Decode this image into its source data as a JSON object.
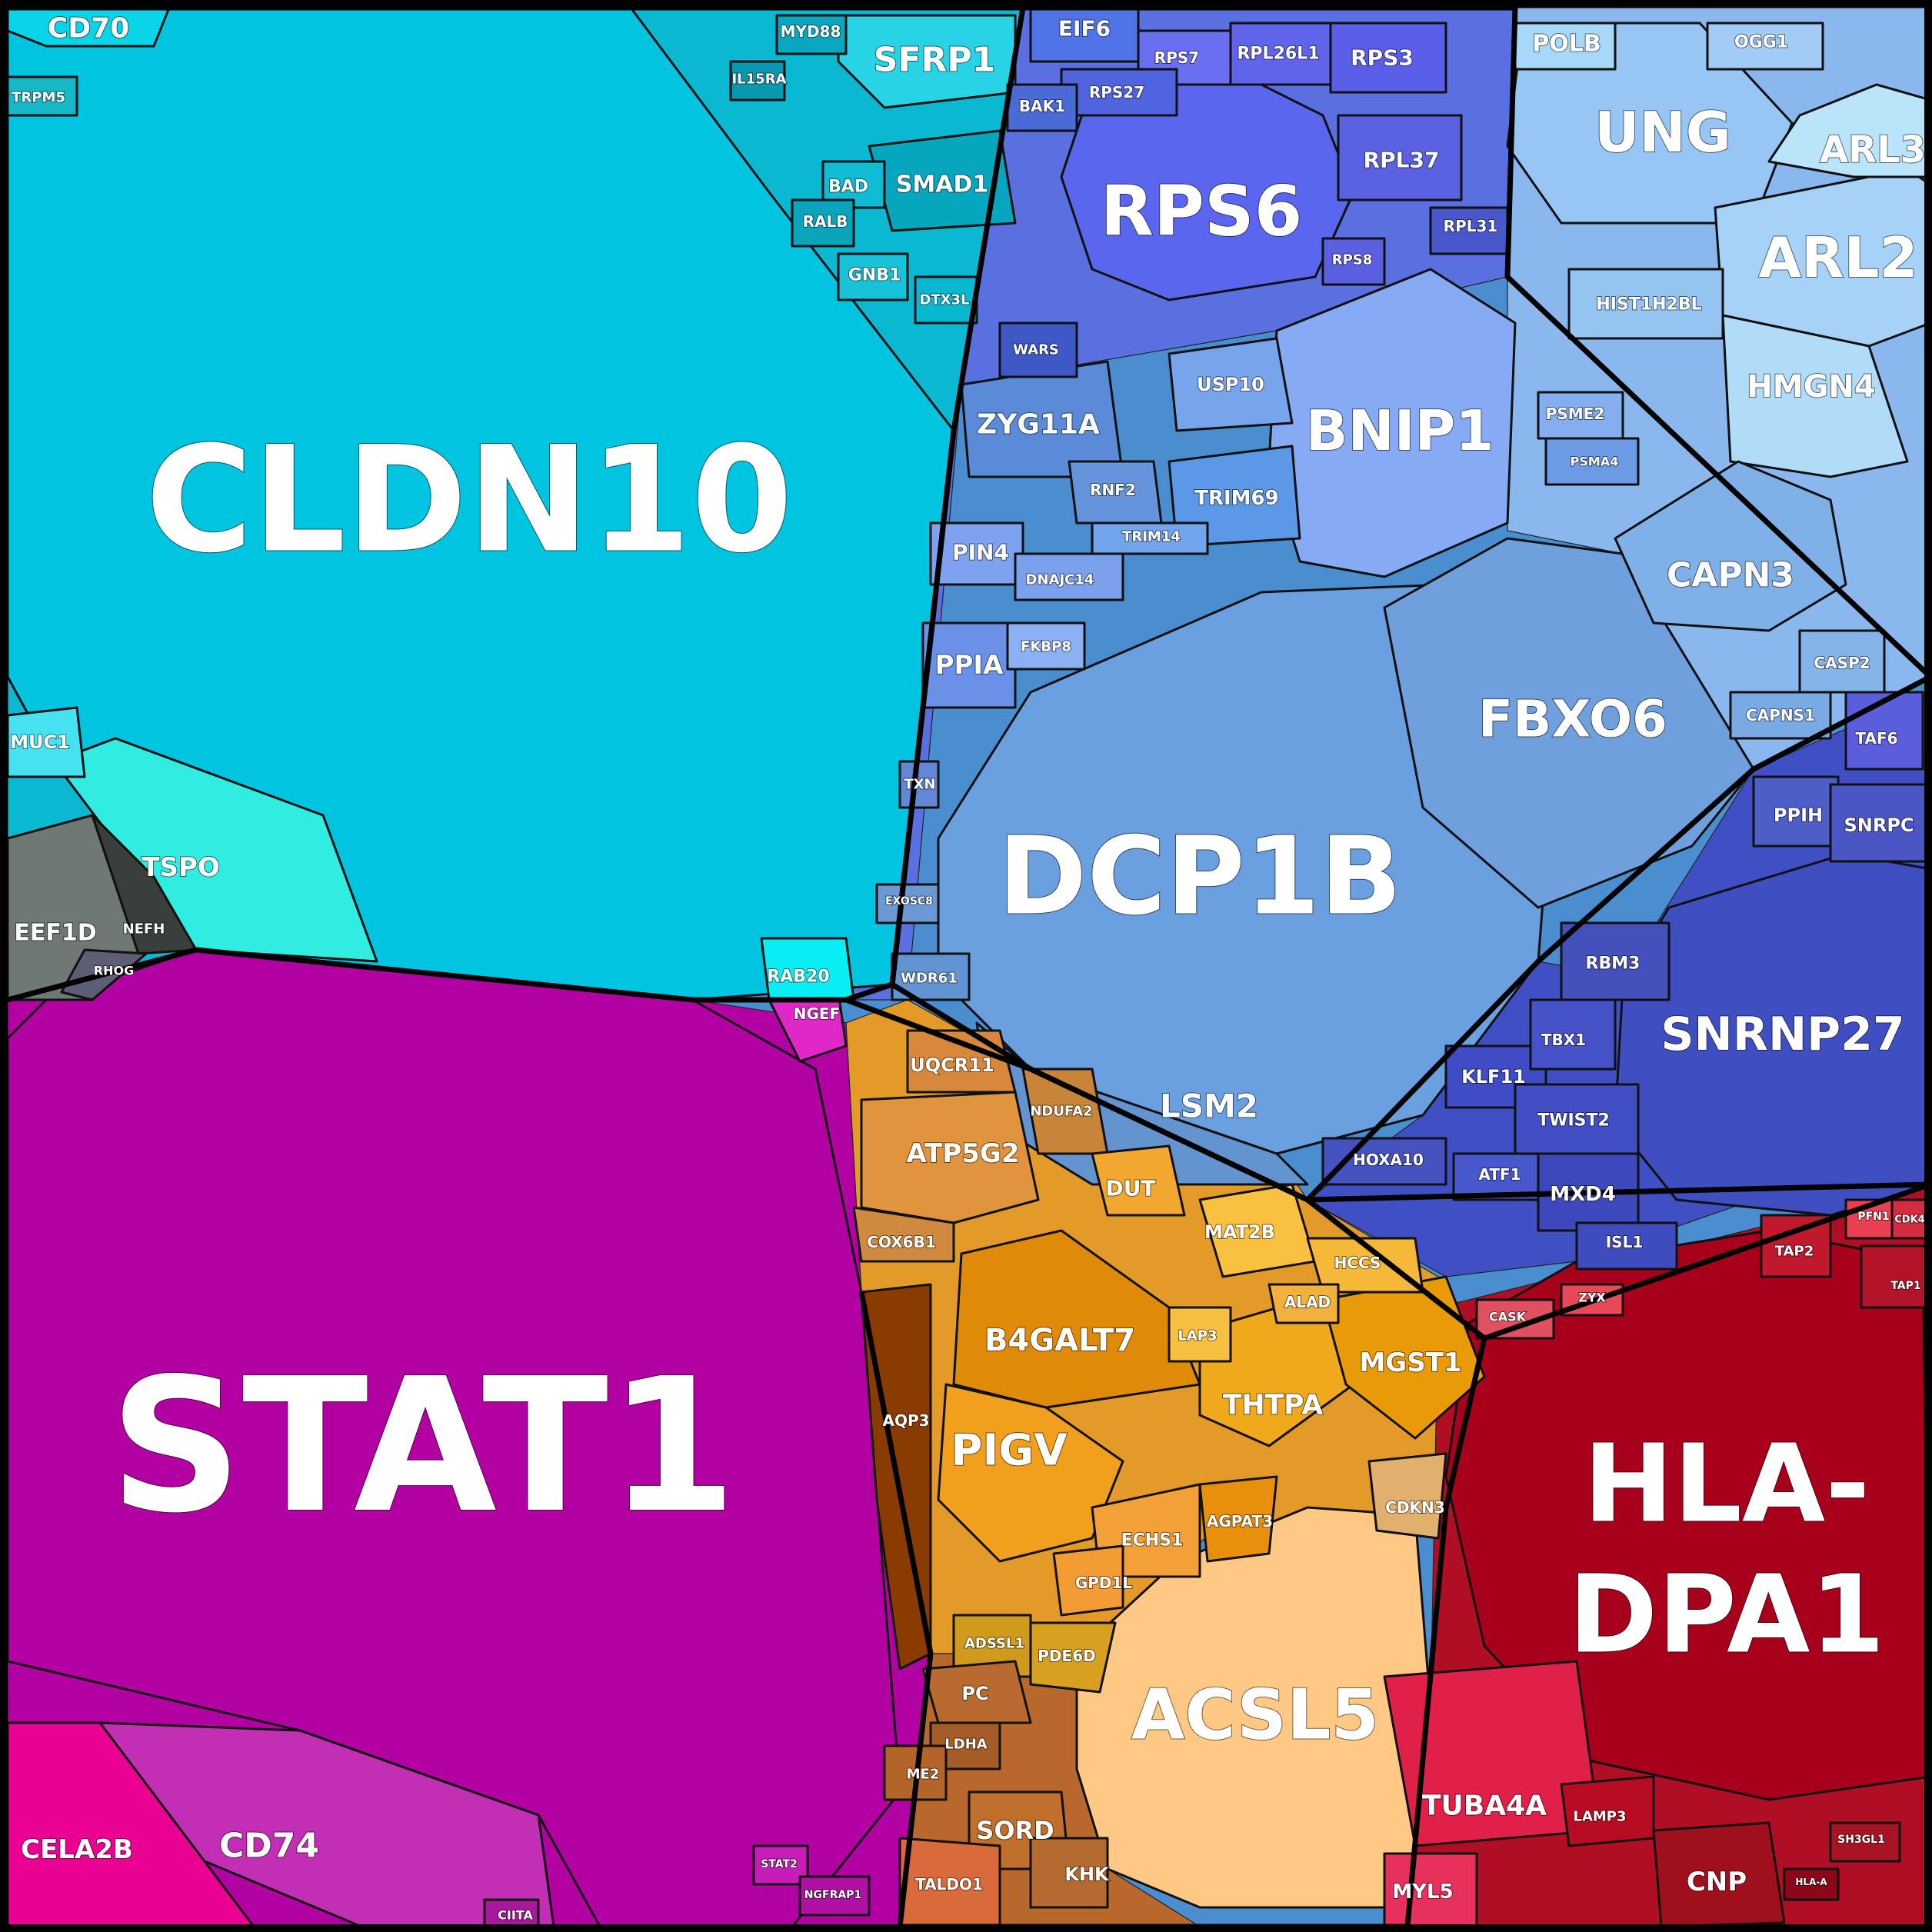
{
  "diagram": {
    "type": "voronoi-treemap",
    "groups": [
      {
        "name": "cyan",
        "color": "#00c4e0"
      },
      {
        "name": "purple",
        "color": "#b300a3"
      },
      {
        "name": "blue",
        "color": "#6a9fe0"
      },
      {
        "name": "orange",
        "color": "#e8900c"
      },
      {
        "name": "red",
        "color": "#a8001c"
      }
    ],
    "cells": [
      {
        "label": "CLDN10",
        "color": "#00c4e0"
      },
      {
        "label": "STAT1",
        "color": "#b300a3"
      },
      {
        "label": "DCP1B",
        "color": "#6a9fe0"
      },
      {
        "label": "HLA-",
        "color": "#a8001c"
      },
      {
        "label": "DPA1",
        "color": "#a8001c"
      },
      {
        "label": "RPS6",
        "color": "#5b66ee"
      },
      {
        "label": "ACSL5",
        "color": "#ffc985"
      },
      {
        "label": "SNRNP27",
        "color": "#3f4ec0"
      },
      {
        "label": "BNIP1",
        "color": "#86aaf4"
      },
      {
        "label": "FBXO6",
        "color": "#6f9fdc"
      },
      {
        "label": "UNG",
        "color": "#98c6f4"
      },
      {
        "label": "ARL2",
        "color": "#a5d2f6"
      },
      {
        "label": "ARL3",
        "color": "#b9e4fa"
      },
      {
        "label": "HMGN4",
        "color": "#b0dcf8"
      },
      {
        "label": "CAPN3",
        "color": "#7fb0e8"
      },
      {
        "label": "LSM2",
        "color": "#6494d0"
      },
      {
        "label": "SFRP1",
        "color": "#29d3e6"
      },
      {
        "label": "SMAD1",
        "color": "#06a6be"
      },
      {
        "label": "TSPO",
        "color": "#31ece0"
      },
      {
        "label": "EEF1D",
        "color": "#6f7872"
      },
      {
        "label": "NEFH",
        "color": "#3a3f3c"
      },
      {
        "label": "RHOG",
        "color": "#5d5d75"
      },
      {
        "label": "CD70",
        "color": "#0ad4e8"
      },
      {
        "label": "TRPM5",
        "color": "#16b8c8"
      },
      {
        "label": "MUC1",
        "color": "#47e2f2"
      },
      {
        "label": "CD74",
        "color": "#c22fb4"
      },
      {
        "label": "CELA2B",
        "color": "#ea0092"
      },
      {
        "label": "NGEF",
        "color": "#e028c8"
      },
      {
        "label": "AQP3",
        "color": "#8a3c00"
      },
      {
        "label": "B4GALT7",
        "color": "#e08a0a"
      },
      {
        "label": "PIGV",
        "color": "#f0a01c"
      },
      {
        "label": "THTPA",
        "color": "#f0a81c"
      },
      {
        "label": "MGST1",
        "color": "#e89a08"
      },
      {
        "label": "ATP5G2",
        "color": "#e0943e"
      },
      {
        "label": "UQCR11",
        "color": "#d8883a"
      },
      {
        "label": "COX6B1",
        "color": "#d08a40"
      },
      {
        "label": "NDUFA2",
        "color": "#c88438"
      },
      {
        "label": "DUT",
        "color": "#f2a830"
      },
      {
        "label": "MAT2B",
        "color": "#fac040"
      },
      {
        "label": "HCCS",
        "color": "#f6b838"
      },
      {
        "label": "ALAD",
        "color": "#f2b03c"
      },
      {
        "label": "LAP3",
        "color": "#f8c040"
      },
      {
        "label": "ECHS1",
        "color": "#f4a038"
      },
      {
        "label": "AGPAT3",
        "color": "#e8900e"
      },
      {
        "label": "GPD1L",
        "color": "#f49c34"
      },
      {
        "label": "PDE6D",
        "color": "#d8a020"
      },
      {
        "label": "ADSSL1",
        "color": "#d09a1c"
      },
      {
        "label": "CDKN3",
        "color": "#e2b06e"
      },
      {
        "label": "PC",
        "color": "#b86a30"
      },
      {
        "label": "LDHA",
        "color": "#a65c26"
      },
      {
        "label": "ME2",
        "color": "#b46428"
      },
      {
        "label": "SORD",
        "color": "#c0702c"
      },
      {
        "label": "KHK",
        "color": "#b46a30"
      },
      {
        "label": "TALDO1",
        "color": "#d86a3c"
      },
      {
        "label": "TUBA4A",
        "color": "#e02048"
      },
      {
        "label": "MYL5",
        "color": "#e8305c"
      },
      {
        "label": "CNP",
        "color": "#a0101c"
      },
      {
        "label": "LAMP3",
        "color": "#b80c24"
      },
      {
        "label": "TAP2",
        "color": "#c0182c"
      },
      {
        "label": "TAP1",
        "color": "#b4142a"
      },
      {
        "label": "PFN1",
        "color": "#e84050"
      },
      {
        "label": "CDK4",
        "color": "#d42c40"
      },
      {
        "label": "ZYX",
        "color": "#e84858"
      },
      {
        "label": "CASK",
        "color": "#e05060"
      },
      {
        "label": "SH3GL1",
        "color": "#a81424"
      },
      {
        "label": "HLA-A",
        "color": "#8c0818"
      },
      {
        "label": "ZYG11A",
        "color": "#5a8ad8"
      },
      {
        "label": "USP10",
        "color": "#78a4ec"
      },
      {
        "label": "TRIM69",
        "color": "#5c98e8"
      },
      {
        "label": "RNF2",
        "color": "#6694dc"
      },
      {
        "label": "TRIM14",
        "color": "#72a4ec"
      },
      {
        "label": "PIN4",
        "color": "#7ea2f0"
      },
      {
        "label": "DNAJC14",
        "color": "#7ba0ec"
      },
      {
        "label": "PPIA",
        "color": "#6a90e8"
      },
      {
        "label": "FKBP8",
        "color": "#8cb0f4"
      },
      {
        "label": "TXN",
        "color": "#6486d6"
      },
      {
        "label": "WDR61",
        "color": "#6294d4"
      },
      {
        "label": "EXOSC8",
        "color": "#6c98d4"
      },
      {
        "label": "RAB20",
        "color": "#08eef4"
      },
      {
        "label": "POLB",
        "color": "#a8d8f8"
      },
      {
        "label": "OGG1",
        "color": "#a0ccf6"
      },
      {
        "label": "HIST1H2BL",
        "color": "#94c4f0"
      },
      {
        "label": "CASP2",
        "color": "#84b4ea"
      },
      {
        "label": "CAPNS1",
        "color": "#7aaae4"
      },
      {
        "label": "TAF6",
        "color": "#5a5edc"
      },
      {
        "label": "PPIH",
        "color": "#4e5ec8"
      },
      {
        "label": "SNRPC",
        "color": "#4a56c4"
      },
      {
        "label": "RBM3",
        "color": "#4450bc"
      },
      {
        "label": "KLF11",
        "color": "#3f4cc6"
      },
      {
        "label": "TBX1",
        "color": "#4652c8"
      },
      {
        "label": "TWIST2",
        "color": "#424ec4"
      },
      {
        "label": "HOXA10",
        "color": "#4652c0"
      },
      {
        "label": "ATF1",
        "color": "#4858cc"
      },
      {
        "label": "MXD4",
        "color": "#3c48bc"
      },
      {
        "label": "ISL1",
        "color": "#3e4cbe"
      },
      {
        "label": "EIF6",
        "color": "#5074e8"
      },
      {
        "label": "RPS7",
        "color": "#6a6ef0"
      },
      {
        "label": "RPL26L1",
        "color": "#6064ea"
      },
      {
        "label": "RPS3",
        "color": "#5a5ee8"
      },
      {
        "label": "RPL37",
        "color": "#5a62e2"
      },
      {
        "label": "RPS27",
        "color": "#5064e0"
      },
      {
        "label": "BAK1",
        "color": "#4a6ad6"
      },
      {
        "label": "WARS",
        "color": "#3e58c6"
      },
      {
        "label": "RPS8",
        "color": "#5a60e0"
      },
      {
        "label": "RPL31",
        "color": "#4a56cc"
      },
      {
        "label": "PSME2",
        "color": "#84aef0"
      },
      {
        "label": "PSMA4",
        "color": "#6c9ae4"
      },
      {
        "label": "DTX3L",
        "color": "#08b8d0"
      },
      {
        "label": "BAD",
        "color": "#10bcd4"
      },
      {
        "label": "RALB",
        "color": "#0aa4bc"
      },
      {
        "label": "GNB1",
        "color": "#18c2d8"
      },
      {
        "label": "MYD88",
        "color": "#0aa8c0"
      },
      {
        "label": "IL15RA",
        "color": "#0a98b0"
      },
      {
        "label": "STAT2",
        "color": "#c81cb8"
      },
      {
        "label": "NGFRAP1",
        "color": "#b010a4"
      },
      {
        "label": "CIITA",
        "color": "#a8189c"
      }
    ]
  }
}
